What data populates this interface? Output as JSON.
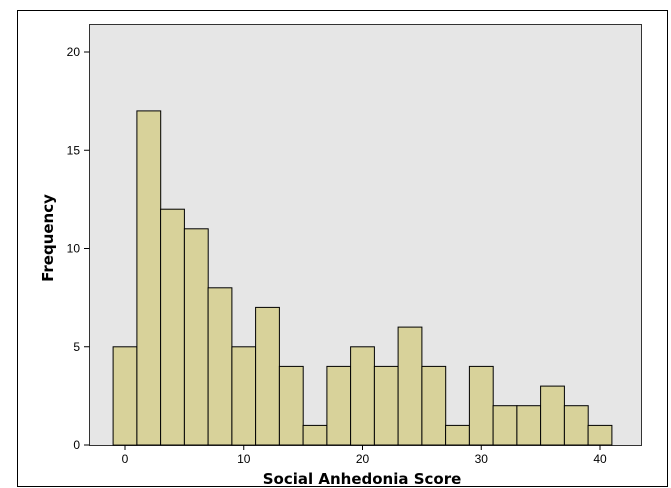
{
  "chart_data": {
    "type": "bar",
    "title": "",
    "xlabel": "Social Anhedonia Score",
    "ylabel": "Frequency",
    "bin_width": 2,
    "bins": [
      {
        "x": 0,
        "value": 5
      },
      {
        "x": 2,
        "value": 17
      },
      {
        "x": 4,
        "value": 12
      },
      {
        "x": 6,
        "value": 11
      },
      {
        "x": 8,
        "value": 8
      },
      {
        "x": 10,
        "value": 5
      },
      {
        "x": 12,
        "value": 7
      },
      {
        "x": 14,
        "value": 4
      },
      {
        "x": 16,
        "value": 1
      },
      {
        "x": 18,
        "value": 4
      },
      {
        "x": 20,
        "value": 5
      },
      {
        "x": 22,
        "value": 4
      },
      {
        "x": 24,
        "value": 6
      },
      {
        "x": 26,
        "value": 4
      },
      {
        "x": 28,
        "value": 1
      },
      {
        "x": 30,
        "value": 4
      },
      {
        "x": 32,
        "value": 2
      },
      {
        "x": 34,
        "value": 2
      },
      {
        "x": 36,
        "value": 3
      },
      {
        "x": 38,
        "value": 2
      },
      {
        "x": 40,
        "value": 1
      }
    ],
    "xlim": [
      -1,
      41
    ],
    "ylim": [
      0,
      20
    ],
    "xticks": [
      0,
      10,
      20,
      30,
      40
    ],
    "yticks": [
      0,
      5,
      10,
      15,
      20
    ],
    "grid": false,
    "colors": {
      "bar": "#d8d29a",
      "plot_background": "#e6e6e6"
    }
  }
}
